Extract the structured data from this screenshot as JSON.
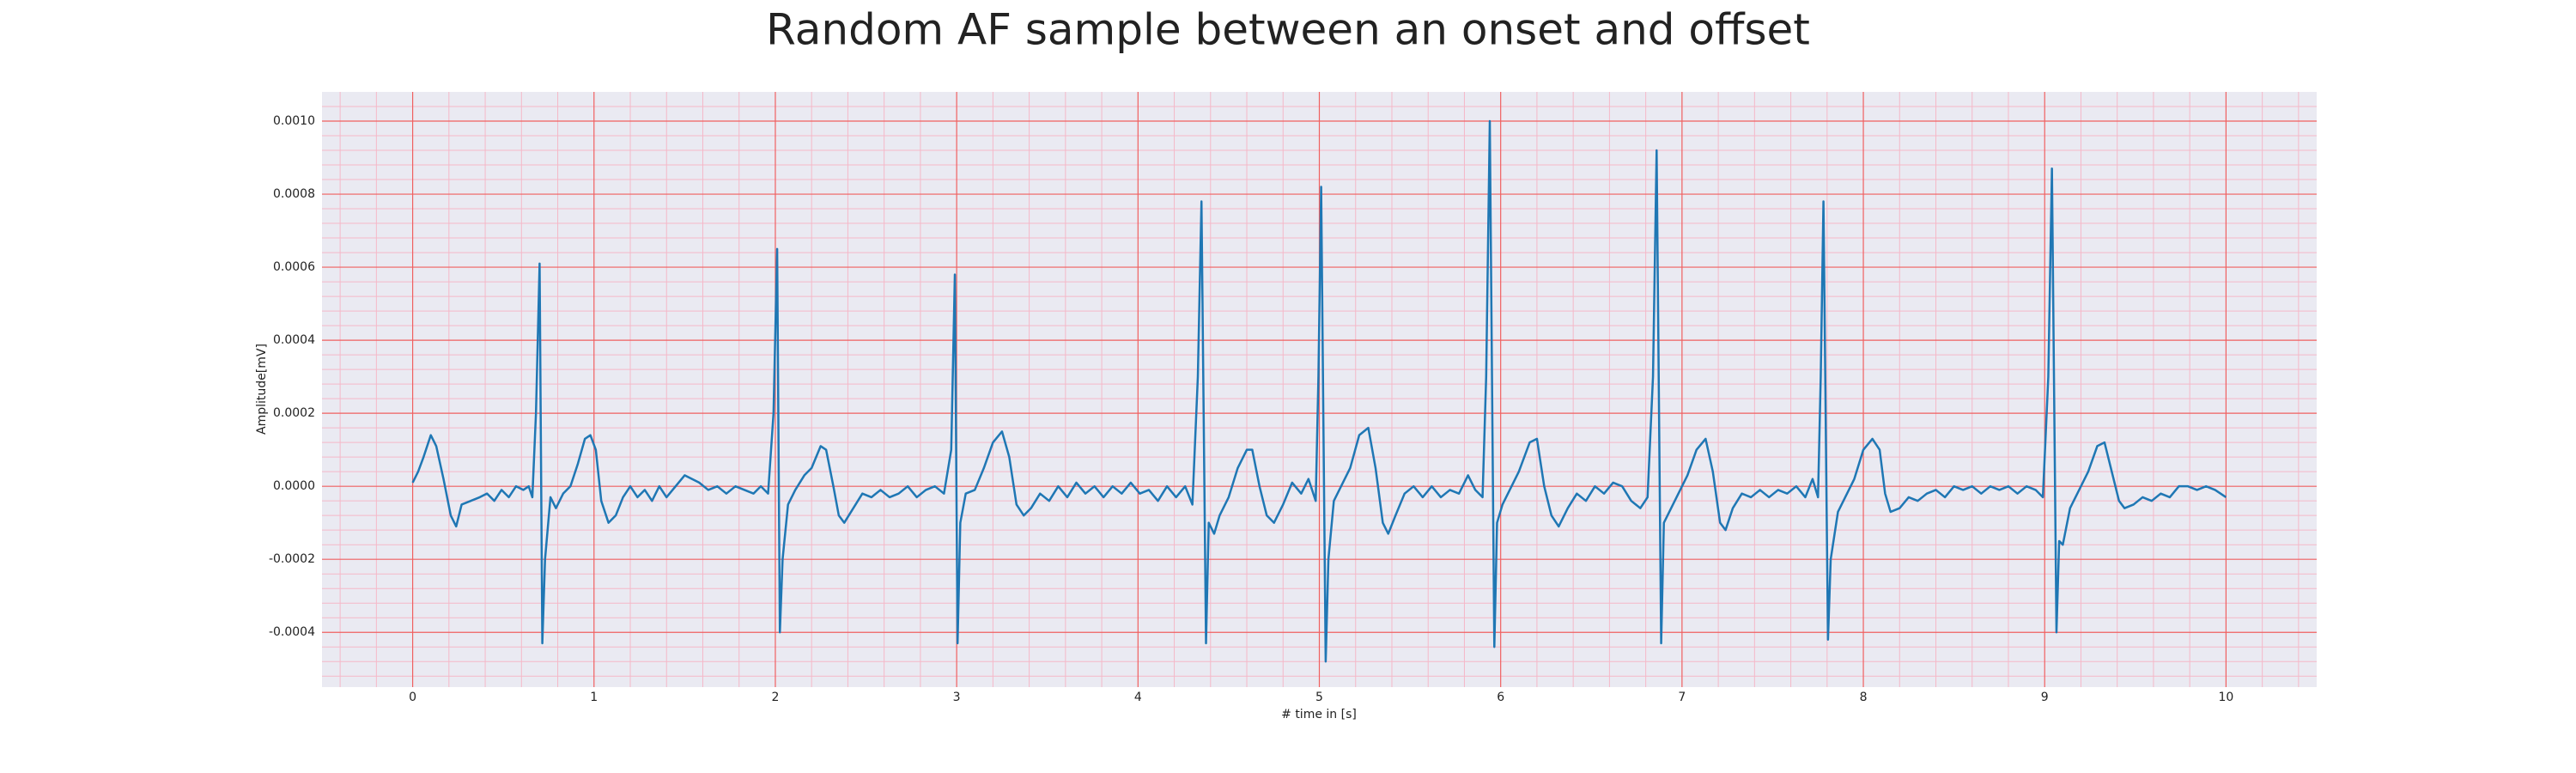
{
  "chart_data": {
    "type": "line",
    "title": "Random AF sample between an onset and offset",
    "xlabel": "# time in [s]",
    "ylabel": "Amplitude[mV]",
    "color": "#1f77b4",
    "grid": true,
    "minor_grid": true,
    "xlim": [
      -0.5,
      10.5
    ],
    "xticks": [
      0,
      1,
      2,
      3,
      4,
      5,
      6,
      7,
      8,
      9,
      10
    ],
    "ylim": [
      -0.00055,
      0.00108
    ],
    "yticks": [
      {
        "value": -0.0004,
        "label": "-0.0004"
      },
      {
        "value": -0.0002,
        "label": "-0.0002"
      },
      {
        "value": 0,
        "label": "0.0000"
      },
      {
        "value": 0.0002,
        "label": "0.0002"
      },
      {
        "value": 0.0004,
        "label": "0.0004"
      },
      {
        "value": 0.0006,
        "label": "0.0006"
      },
      {
        "value": 0.0008,
        "label": "0.0008"
      },
      {
        "value": 0.001,
        "label": "0.0010"
      }
    ],
    "x": [
      0,
      0.03,
      0.06,
      0.1,
      0.13,
      0.17,
      0.21,
      0.24,
      0.27,
      0.32,
      0.37,
      0.41,
      0.45,
      0.49,
      0.53,
      0.57,
      0.61,
      0.64,
      0.66,
      0.68,
      0.7,
      0.715,
      0.73,
      0.76,
      0.79,
      0.83,
      0.87,
      0.91,
      0.95,
      0.98,
      1.01,
      1.04,
      1.08,
      1.12,
      1.16,
      1.2,
      1.24,
      1.28,
      1.32,
      1.36,
      1.4,
      1.45,
      1.5,
      1.54,
      1.58,
      1.63,
      1.68,
      1.73,
      1.78,
      1.83,
      1.88,
      1.92,
      1.96,
      1.99,
      2.01,
      2.025,
      2.04,
      2.07,
      2.11,
      2.16,
      2.2,
      2.25,
      2.28,
      2.32,
      2.35,
      2.38,
      2.43,
      2.48,
      2.53,
      2.58,
      2.63,
      2.68,
      2.73,
      2.78,
      2.83,
      2.88,
      2.93,
      2.97,
      2.99,
      3.005,
      3.02,
      3.05,
      3.1,
      3.15,
      3.2,
      3.25,
      3.29,
      3.33,
      3.37,
      3.41,
      3.46,
      3.51,
      3.56,
      3.61,
      3.66,
      3.71,
      3.76,
      3.81,
      3.86,
      3.91,
      3.96,
      4.01,
      4.06,
      4.11,
      4.16,
      4.21,
      4.26,
      4.3,
      4.33,
      4.35,
      4.375,
      4.39,
      4.42,
      4.45,
      4.5,
      4.55,
      4.6,
      4.63,
      4.67,
      4.71,
      4.75,
      4.8,
      4.85,
      4.9,
      4.94,
      4.98,
      4.995,
      5.01,
      5.035,
      5.05,
      5.08,
      5.12,
      5.17,
      5.22,
      5.27,
      5.31,
      5.35,
      5.38,
      5.42,
      5.47,
      5.52,
      5.57,
      5.62,
      5.67,
      5.72,
      5.77,
      5.82,
      5.86,
      5.9,
      5.92,
      5.94,
      5.965,
      5.98,
      6.01,
      6.05,
      6.1,
      6.16,
      6.2,
      6.24,
      6.28,
      6.32,
      6.37,
      6.42,
      6.47,
      6.52,
      6.57,
      6.62,
      6.67,
      6.72,
      6.77,
      6.81,
      6.84,
      6.86,
      6.885,
      6.9,
      6.94,
      6.98,
      7.03,
      7.08,
      7.13,
      7.17,
      7.21,
      7.24,
      7.28,
      7.33,
      7.38,
      7.43,
      7.48,
      7.53,
      7.58,
      7.63,
      7.68,
      7.72,
      7.75,
      7.765,
      7.78,
      7.805,
      7.82,
      7.86,
      7.9,
      7.95,
      8.0,
      8.05,
      8.09,
      8.12,
      8.15,
      8.2,
      8.25,
      8.3,
      8.35,
      8.4,
      8.45,
      8.5,
      8.55,
      8.6,
      8.65,
      8.7,
      8.75,
      8.8,
      8.85,
      8.9,
      8.95,
      8.99,
      9.02,
      9.04,
      9.065,
      9.08,
      9.1,
      9.14,
      9.19,
      9.24,
      9.29,
      9.33,
      9.37,
      9.41,
      9.44,
      9.49,
      9.54,
      9.59,
      9.64,
      9.69,
      9.74,
      9.79,
      9.84,
      9.89,
      9.94,
      10.0
    ],
    "values": [
      1e-05,
      4e-05,
      8e-05,
      0.00014,
      0.00011,
      2e-05,
      -8e-05,
      -0.00011,
      -5e-05,
      -4e-05,
      -3e-05,
      -2e-05,
      -4e-05,
      -1e-05,
      -3e-05,
      0,
      -1e-05,
      0,
      -3e-05,
      0.0002,
      0.00061,
      -0.00043,
      -0.0002,
      -3e-05,
      -6e-05,
      -2e-05,
      0,
      6e-05,
      0.00013,
      0.00014,
      0.0001,
      -4e-05,
      -0.0001,
      -8e-05,
      -3e-05,
      0,
      -3e-05,
      -1e-05,
      -4e-05,
      0,
      -3e-05,
      0,
      3e-05,
      2e-05,
      1e-05,
      -1e-05,
      0,
      -2e-05,
      0,
      -1e-05,
      -2e-05,
      0,
      -2e-05,
      0.0002,
      0.00065,
      -0.0004,
      -0.0002,
      -5e-05,
      -1e-05,
      3e-05,
      5e-05,
      0.00011,
      0.0001,
      0,
      -8e-05,
      -0.0001,
      -6e-05,
      -2e-05,
      -3e-05,
      -1e-05,
      -3e-05,
      -2e-05,
      0,
      -3e-05,
      -1e-05,
      0,
      -2e-05,
      0.0001,
      0.00058,
      -0.00043,
      -0.0001,
      -2e-05,
      -1e-05,
      5e-05,
      0.00012,
      0.00015,
      8e-05,
      -5e-05,
      -8e-05,
      -6e-05,
      -2e-05,
      -4e-05,
      0,
      -3e-05,
      1e-05,
      -2e-05,
      0,
      -3e-05,
      0,
      -2e-05,
      1e-05,
      -2e-05,
      -1e-05,
      -4e-05,
      0,
      -3e-05,
      0,
      -5e-05,
      0.0003,
      0.00078,
      -0.00043,
      -0.0001,
      -0.00013,
      -8e-05,
      -3e-05,
      5e-05,
      0.0001,
      0.0001,
      0,
      -8e-05,
      -0.0001,
      -5e-05,
      1e-05,
      -2e-05,
      2e-05,
      -4e-05,
      0.0003,
      0.00082,
      -0.00048,
      -0.0002,
      -4e-05,
      0,
      5e-05,
      0.00014,
      0.00016,
      5e-05,
      -0.0001,
      -0.00013,
      -8e-05,
      -2e-05,
      0,
      -3e-05,
      0,
      -3e-05,
      -1e-05,
      -2e-05,
      3e-05,
      -1e-05,
      -3e-05,
      0.0003,
      0.001,
      -0.00044,
      -0.0001,
      -5e-05,
      -1e-05,
      4e-05,
      0.00012,
      0.00013,
      0,
      -8e-05,
      -0.00011,
      -6e-05,
      -2e-05,
      -4e-05,
      0,
      -2e-05,
      1e-05,
      0,
      -4e-05,
      -6e-05,
      -3e-05,
      0.0003,
      0.00092,
      -0.00043,
      -0.0001,
      -6e-05,
      -2e-05,
      3e-05,
      0.0001,
      0.00013,
      4e-05,
      -0.0001,
      -0.00012,
      -6e-05,
      -2e-05,
      -3e-05,
      -1e-05,
      -3e-05,
      -1e-05,
      -2e-05,
      0,
      -3e-05,
      2e-05,
      -3e-05,
      0.0003,
      0.00078,
      -0.00042,
      -0.0002,
      -7e-05,
      -3e-05,
      2e-05,
      0.0001,
      0.00013,
      0.0001,
      -2e-05,
      -7e-05,
      -6e-05,
      -3e-05,
      -4e-05,
      -2e-05,
      -1e-05,
      -3e-05,
      0,
      -1e-05,
      0,
      -2e-05,
      0,
      -1e-05,
      0,
      -2e-05,
      0,
      -1e-05,
      -3e-05,
      0.0003,
      0.00087,
      -0.0004,
      -0.00015,
      -0.00016,
      -6e-05,
      -1e-05,
      4e-05,
      0.00011,
      0.00012,
      4e-05,
      -4e-05,
      -6e-05,
      -5e-05,
      -3e-05,
      -4e-05,
      -2e-05,
      -3e-05,
      0,
      0,
      -1e-05,
      0,
      -1e-05,
      -3e-05
    ]
  }
}
